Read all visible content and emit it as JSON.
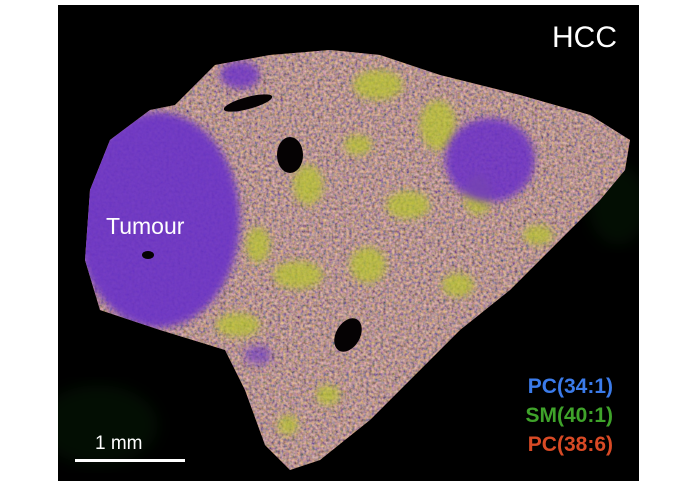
{
  "image": {
    "title": "HCC",
    "region_label": "Tumour",
    "scale_bar": {
      "label": "1 mm"
    },
    "legend": [
      {
        "label": "PC(34:1)",
        "color": "#3b7bea"
      },
      {
        "label": "SM(40:1)",
        "color": "#3fa32a"
      },
      {
        "label": "PC(38:6)",
        "color": "#d94a25"
      }
    ],
    "background_color": "#000000"
  }
}
